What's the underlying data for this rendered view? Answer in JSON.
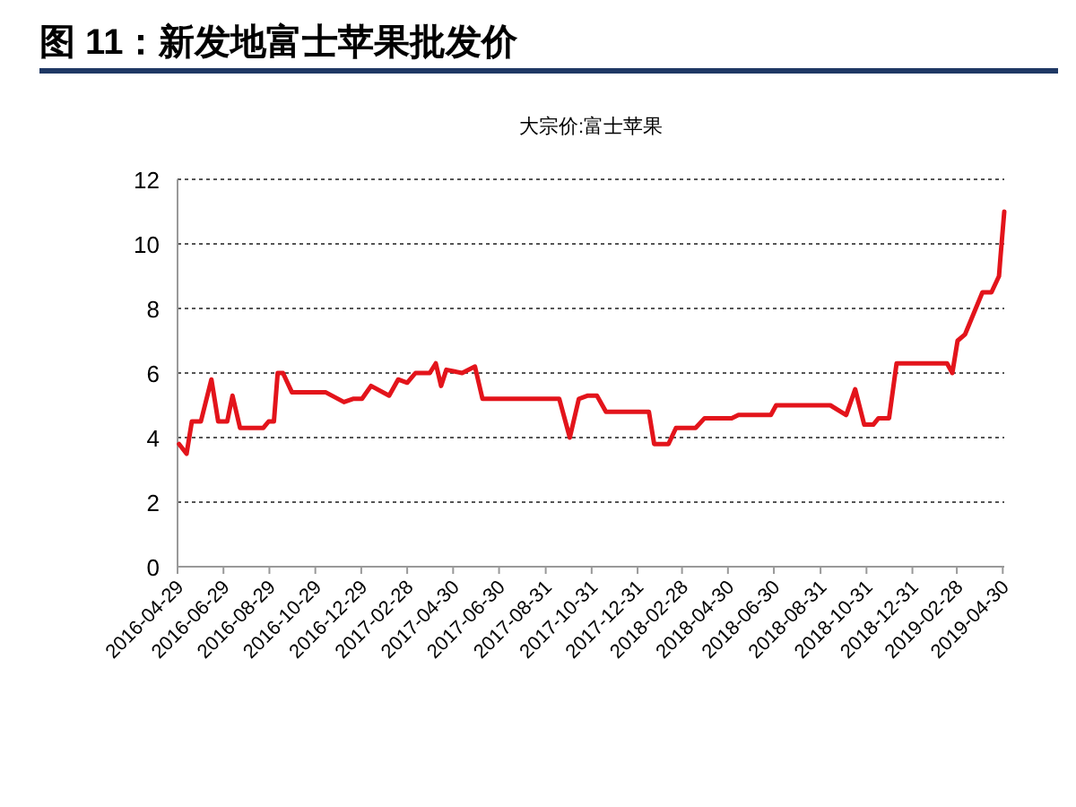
{
  "chart_data": {
    "type": "line",
    "title": "图 11：新发地富士苹果批发价",
    "subtitle": "大宗价:富士苹果",
    "x": [
      "2016-05-01",
      "2016-05-11",
      "2016-05-18",
      "2016-05-30",
      "2016-06-13",
      "2016-06-22",
      "2016-07-04",
      "2016-07-11",
      "2016-07-21",
      "2016-08-21",
      "2016-08-28",
      "2016-09-04",
      "2016-09-09",
      "2016-09-16",
      "2016-09-28",
      "2016-11-12",
      "2016-12-06",
      "2016-12-18",
      "2016-12-30",
      "2017-01-11",
      "2017-02-04",
      "2017-02-16",
      "2017-02-28",
      "2017-03-11",
      "2017-03-30",
      "2017-04-07",
      "2017-04-14",
      "2017-04-21",
      "2017-05-12",
      "2017-05-29",
      "2017-06-08",
      "2017-09-18",
      "2017-10-02",
      "2017-10-14",
      "2017-10-26",
      "2017-11-07",
      "2017-11-19",
      "2017-11-24",
      "2018-01-15",
      "2018-01-22",
      "2018-02-10",
      "2018-02-20",
      "2018-03-18",
      "2018-03-30",
      "2018-05-05",
      "2018-05-14",
      "2018-06-26",
      "2018-07-03",
      "2018-09-13",
      "2018-10-04",
      "2018-10-16",
      "2018-10-28",
      "2018-11-09",
      "2018-11-16",
      "2018-11-30",
      "2018-12-10",
      "2019-02-15",
      "2019-02-22",
      "2019-03-01",
      "2019-03-11",
      "2019-04-03",
      "2019-04-15",
      "2019-04-25",
      "2019-04-27",
      "2019-05-02"
    ],
    "series": [
      {
        "color": "#e3141b",
        "values": [
          3.8,
          3.5,
          4.5,
          4.5,
          5.8,
          4.5,
          4.5,
          5.3,
          4.3,
          4.3,
          4.5,
          4.5,
          6.0,
          6.0,
          5.4,
          5.4,
          5.1,
          5.2,
          5.2,
          5.6,
          5.3,
          5.8,
          5.7,
          6.0,
          6.0,
          6.3,
          5.6,
          6.1,
          6.0,
          6.2,
          5.2,
          5.2,
          4.0,
          5.2,
          5.3,
          5.3,
          4.8,
          4.8,
          4.8,
          3.8,
          3.8,
          4.3,
          4.3,
          4.6,
          4.6,
          4.7,
          4.7,
          5.0,
          5.0,
          4.7,
          5.5,
          4.4,
          4.4,
          4.6,
          4.6,
          6.3,
          6.3,
          6.0,
          7.0,
          7.2,
          8.5,
          8.5,
          9.0,
          9.6,
          11.0
        ]
      }
    ],
    "ylim": [
      0,
      12
    ],
    "yticks": [
      0,
      2,
      4,
      6,
      8,
      10,
      12
    ],
    "xlim": [
      "2016-04-29",
      "2019-05-02"
    ],
    "xticks": [
      "2016-04-29",
      "2016-06-29",
      "2016-08-29",
      "2016-10-29",
      "2016-12-29",
      "2017-02-28",
      "2017-04-30",
      "2017-06-30",
      "2017-08-31",
      "2017-10-31",
      "2017-12-31",
      "2018-02-28",
      "2018-04-30",
      "2018-06-30",
      "2018-08-31",
      "2018-10-31",
      "2018-12-31",
      "2019-02-28",
      "2019-04-30"
    ],
    "grid": "y",
    "marker": "none",
    "line_style": "solid"
  }
}
